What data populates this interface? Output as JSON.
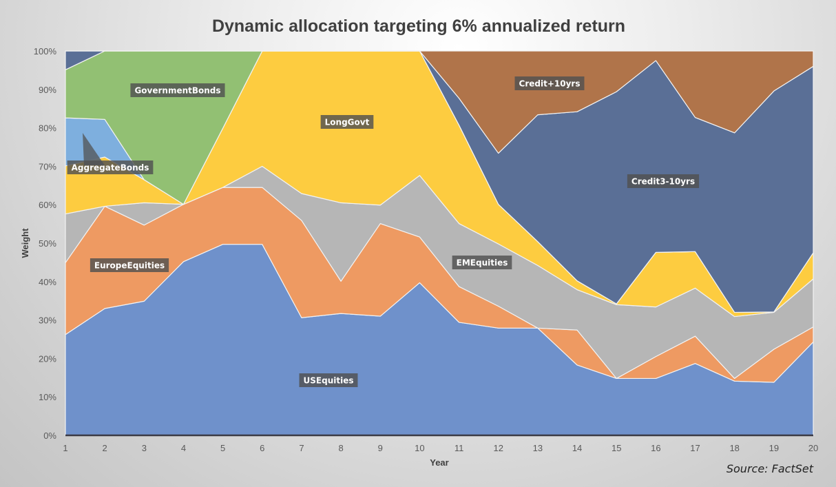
{
  "chart_data": {
    "type": "area",
    "stacked": true,
    "title": "Dynamic allocation targeting 6% annualized return",
    "xlabel": "Year",
    "ylabel": "Weight",
    "x": [
      1,
      2,
      3,
      4,
      5,
      6,
      7,
      8,
      9,
      10,
      11,
      12,
      13,
      14,
      15,
      16,
      17,
      18,
      19,
      20
    ],
    "ylim": [
      0,
      100
    ],
    "yticks": [
      "0%",
      "10%",
      "20%",
      "30%",
      "40%",
      "50%",
      "60%",
      "70%",
      "80%",
      "90%",
      "100%"
    ],
    "grid": false,
    "legend": "none (inline data labels)",
    "series": [
      {
        "name": "USEquities",
        "color": "#6F91CB",
        "values": [
          26.2,
          33,
          34.9,
          45.2,
          49.7,
          49.7,
          30.6,
          31.7,
          31,
          39.7,
          29.4,
          27.9,
          27.9,
          18.3,
          14.8,
          14.8,
          18.7,
          14.1,
          13.8,
          24.3
        ]
      },
      {
        "name": "EuropeEquities",
        "color": "#EE9A62",
        "values": [
          18.7,
          26.6,
          19.8,
          14.9,
          14.8,
          14.8,
          25.3,
          8.4,
          24.1,
          11.9,
          9.3,
          5.7,
          0,
          9.1,
          0,
          5.7,
          7.1,
          0.7,
          8.6,
          3.9
        ]
      },
      {
        "name": "EMEquities",
        "color": "#B6B6B6",
        "values": [
          12.7,
          0,
          5.8,
          0,
          0,
          5.5,
          7,
          20.4,
          4.8,
          16,
          16.4,
          16.2,
          16.3,
          10.5,
          19.2,
          12.9,
          12.5,
          16.1,
          9.6,
          12.5
        ]
      },
      {
        "name": "LongGovt",
        "color": "#FDCC40",
        "values": [
          12.5,
          12.8,
          6,
          0,
          15.4,
          30,
          37.1,
          39.5,
          40.1,
          32.4,
          25.6,
          10.3,
          6.2,
          2.3,
          0.2,
          14.2,
          9.5,
          1.1,
          0.1,
          6.8
        ]
      },
      {
        "name": "AggregateBonds",
        "color": "#7EAFDE",
        "values": [
          12.5,
          9.8,
          0,
          0,
          0,
          0,
          0,
          0,
          0,
          0,
          0,
          0,
          0,
          0,
          0,
          0,
          0,
          0,
          0,
          0
        ]
      },
      {
        "name": "GovernmentBonds",
        "color": "#92C073",
        "values": [
          12.5,
          17.8,
          33.5,
          39.9,
          20.1,
          0,
          0,
          0,
          0,
          0,
          0,
          0,
          0,
          0,
          0,
          0,
          0,
          0,
          0,
          0
        ]
      },
      {
        "name": "Credit3-10yrs",
        "color": "#5A6F96",
        "values": [
          4.9,
          0,
          0,
          0,
          0,
          0,
          0,
          0,
          0,
          0,
          7,
          13.3,
          33,
          44,
          55.2,
          49.9,
          34.9,
          46.7,
          57.5,
          48.5
        ]
      },
      {
        "name": "Credit+10yrs",
        "color": "#B0744A",
        "values": [
          0,
          0,
          0,
          0,
          0,
          0,
          0,
          0,
          0,
          0,
          12.3,
          26.6,
          16.6,
          15.8,
          10.6,
          2.5,
          17.3,
          21.3,
          10.4,
          4
        ]
      }
    ]
  },
  "source": "Source: FactSet"
}
